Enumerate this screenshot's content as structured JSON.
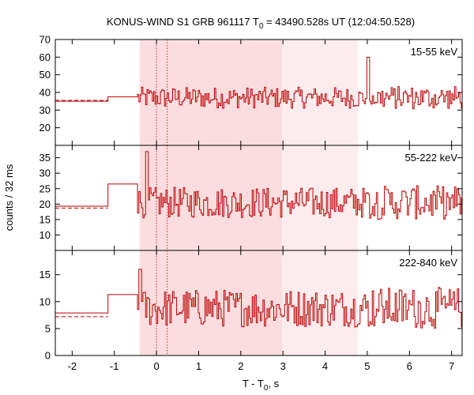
{
  "chart_data": {
    "type": "line",
    "title": "KONUS-WIND S1 GRB 961117 T",
    "title_subscript": "0",
    "title_rest": " = 43490.528s UT (12:04:50.528)",
    "xlabel": "T - T",
    "xlabel_subscript": "0",
    "xlabel_rest": ", s",
    "ylabel": "counts / 32 ms",
    "xlim": [
      -2.4,
      7.25
    ],
    "x_ticks": [
      -2,
      -1,
      0,
      1,
      2,
      3,
      4,
      5,
      6,
      7
    ],
    "x_tick_labels": [
      "-2",
      "-1",
      "0",
      "1",
      "2",
      "3",
      "4",
      "5",
      "6",
      "7"
    ],
    "highlight_regions": [
      {
        "x0": -0.4,
        "x1": 2.98,
        "color": "#fbdde0"
      },
      {
        "x0": 2.98,
        "x1": 4.78,
        "color": "#fdecee"
      }
    ],
    "vertical_markers": [
      0.0,
      0.256
    ],
    "line_color": "#bb0000",
    "panels": [
      {
        "label": "15-55 keV",
        "ylim": [
          10,
          70
        ],
        "y_ticks": [
          20,
          30,
          40,
          50,
          60,
          70
        ],
        "y_tick_labels": [
          "20",
          "30",
          "40",
          "50",
          "60",
          "70"
        ],
        "background": 35.5,
        "pre_steps": [
          {
            "x0": -2.4,
            "x1": -1.15,
            "y": 35
          },
          {
            "x0": -1.15,
            "x1": -0.45,
            "y": 37.5
          }
        ],
        "mean": 37,
        "amp": 6,
        "spikes": [
          {
            "x": 5.0,
            "y": 60
          }
        ]
      },
      {
        "label": "55-222 keV",
        "ylim": [
          5,
          39
        ],
        "y_ticks": [
          10,
          15,
          20,
          25,
          30,
          35
        ],
        "y_tick_labels": [
          "10",
          "15",
          "20",
          "25",
          "30",
          "35"
        ],
        "background": 18.7,
        "pre_steps": [
          {
            "x0": -2.4,
            "x1": -1.15,
            "y": 19.3
          },
          {
            "x0": -1.15,
            "x1": -0.45,
            "y": 26.5
          }
        ],
        "mean": 20.5,
        "amp": 5,
        "spikes": [
          {
            "x": -0.25,
            "y": 37
          }
        ]
      },
      {
        "label": "222-840 keV",
        "ylim": [
          0,
          19.5
        ],
        "y_ticks": [
          0,
          5,
          10,
          15
        ],
        "y_tick_labels": [
          "0",
          "5",
          "10",
          "15"
        ],
        "background": 7.2,
        "pre_steps": [
          {
            "x0": -2.4,
            "x1": -1.15,
            "y": 7.9
          },
          {
            "x0": -1.15,
            "x1": -0.45,
            "y": 11.3
          }
        ],
        "mean": 8.8,
        "amp": 3.5,
        "spikes": [
          {
            "x": -0.4,
            "y": 16
          }
        ]
      }
    ]
  }
}
